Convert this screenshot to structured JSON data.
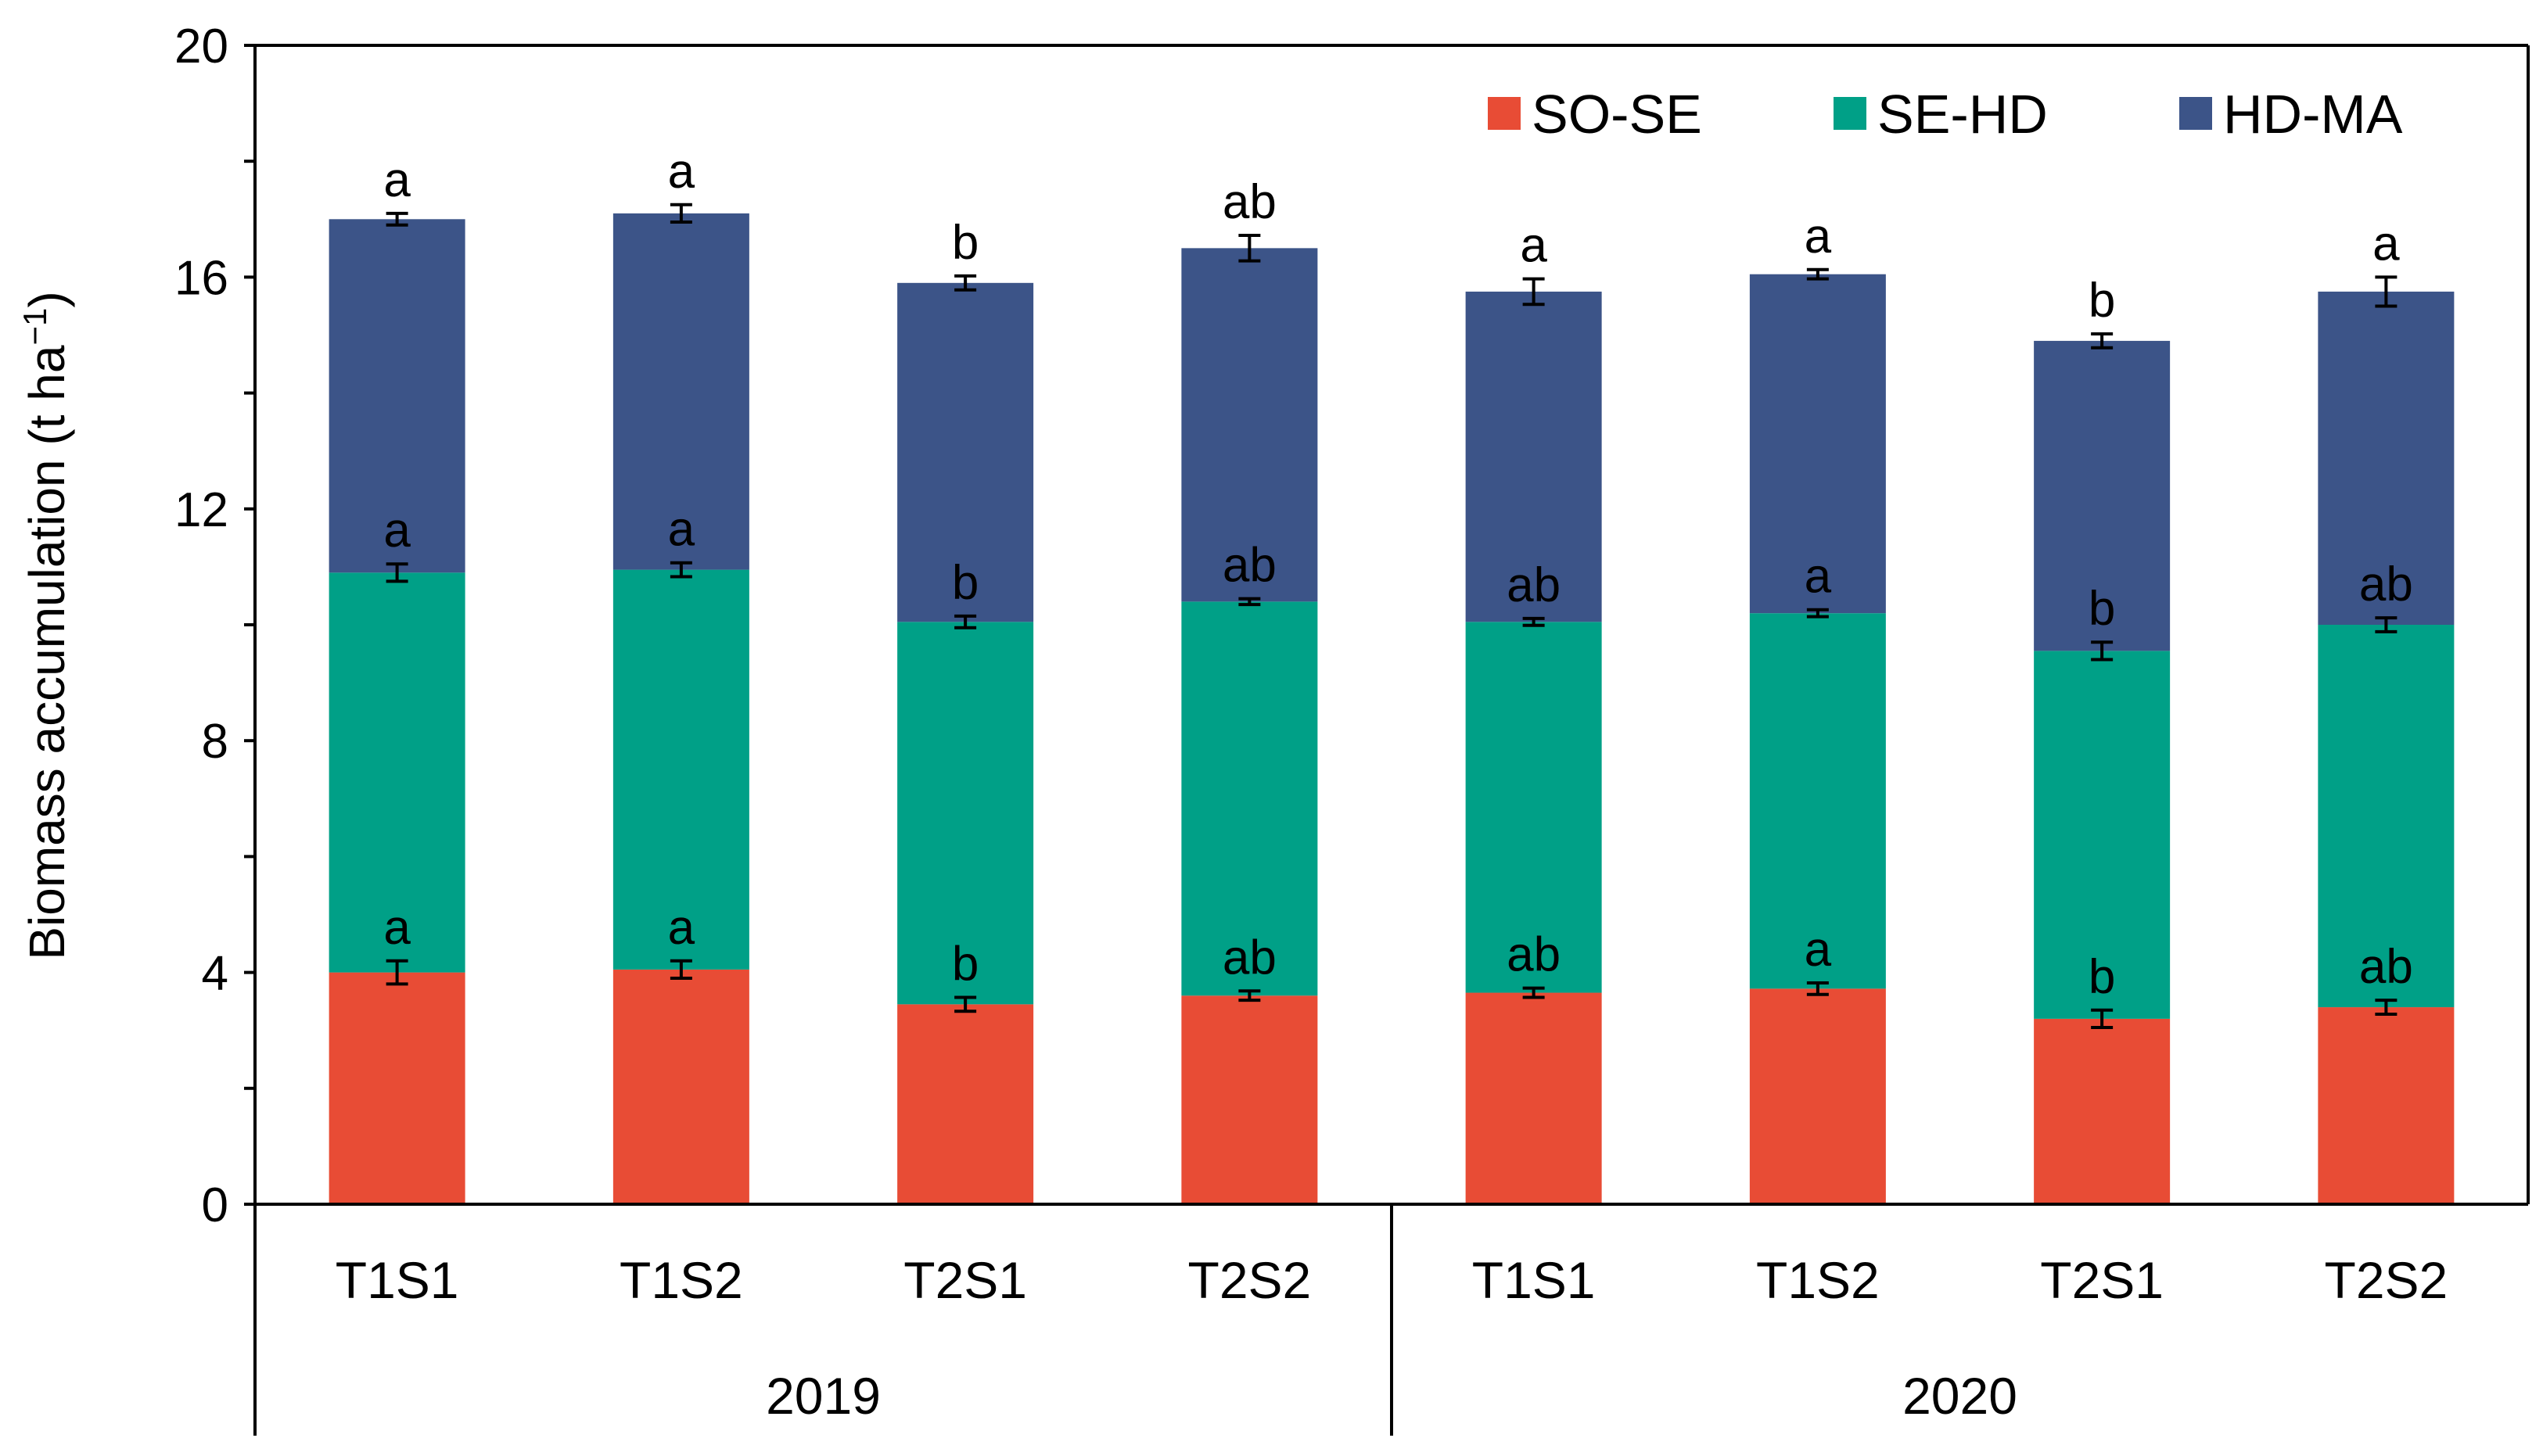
{
  "chart_data": {
    "type": "bar",
    "stacked": true,
    "title": "",
    "xlabel": "",
    "ylabel": "Biomass accumulation (t ha",
    "ylabel_sup": "−1",
    "ylabel_close": ")",
    "ylim": [
      0,
      20
    ],
    "yticks": [
      0,
      4,
      8,
      12,
      16,
      20
    ],
    "ytick_labels": [
      "0",
      "4",
      "8",
      "12",
      "16",
      "20"
    ],
    "grid": false,
    "legend_position": "top-right",
    "categories": [
      "T1S1",
      "T1S2",
      "T2S1",
      "T2S2",
      "T1S1",
      "T1S2",
      "T2S1",
      "T2S2"
    ],
    "groups": [
      {
        "label": "2019",
        "count": 4
      },
      {
        "label": "2020",
        "count": 4
      }
    ],
    "series": [
      {
        "name": "SO-SE",
        "color": "#e84c35",
        "values": [
          4.0,
          4.05,
          3.45,
          3.6,
          3.65,
          3.72,
          3.2,
          3.4
        ],
        "errors": [
          0.2,
          0.15,
          0.12,
          0.08,
          0.08,
          0.1,
          0.15,
          0.12
        ],
        "sig_labels": [
          "a",
          "a",
          "b",
          "ab",
          "ab",
          "a",
          "b",
          "ab"
        ]
      },
      {
        "name": "SE-HD",
        "color": "#00a087",
        "values": [
          6.9,
          6.9,
          6.6,
          6.8,
          6.4,
          6.48,
          6.35,
          6.6
        ],
        "errors": [
          0.15,
          0.12,
          0.1,
          0.05,
          0.06,
          0.06,
          0.15,
          0.12
        ],
        "sig_labels": [
          "a",
          "a",
          "b",
          "ab",
          "ab",
          "a",
          "b",
          "ab"
        ]
      },
      {
        "name": "HD-MA",
        "color": "#3c5488",
        "values": [
          6.1,
          6.15,
          5.85,
          6.1,
          5.7,
          5.85,
          5.35,
          5.75
        ],
        "errors": [
          0.1,
          0.15,
          0.12,
          0.22,
          0.22,
          0.08,
          0.12,
          0.25
        ],
        "sig_labels": [
          "a",
          "a",
          "b",
          "ab",
          "a",
          "a",
          "b",
          "a"
        ]
      }
    ]
  }
}
